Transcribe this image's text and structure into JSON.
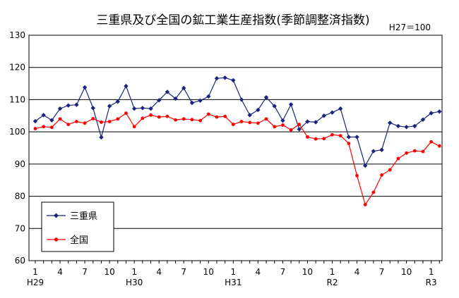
{
  "chart_data": {
    "type": "line",
    "title": "三重県及び全国の鉱工業生産指数(季節調整済指数)",
    "unit_note": "H27＝100",
    "ylim": [
      60,
      130
    ],
    "y_ticks": [
      "60",
      "70",
      "80",
      "90",
      "100",
      "110",
      "120",
      "130"
    ],
    "x_tick_labels": [
      {
        "index": 0,
        "label": "1"
      },
      {
        "index": 3,
        "label": "4"
      },
      {
        "index": 6,
        "label": "7"
      },
      {
        "index": 9,
        "label": "10"
      },
      {
        "index": 12,
        "label": "1"
      },
      {
        "index": 15,
        "label": "4"
      },
      {
        "index": 18,
        "label": "7"
      },
      {
        "index": 21,
        "label": "10"
      },
      {
        "index": 24,
        "label": "1"
      },
      {
        "index": 27,
        "label": "4"
      },
      {
        "index": 30,
        "label": "7"
      },
      {
        "index": 33,
        "label": "10"
      },
      {
        "index": 36,
        "label": "1"
      },
      {
        "index": 39,
        "label": "4"
      },
      {
        "index": 42,
        "label": "7"
      },
      {
        "index": 45,
        "label": "10"
      },
      {
        "index": 48,
        "label": "1"
      }
    ],
    "era_labels": [
      {
        "index": 0,
        "label": "H29"
      },
      {
        "index": 12,
        "label": "H30"
      },
      {
        "index": 24,
        "label": "H31"
      },
      {
        "index": 36,
        "label": "R2"
      },
      {
        "index": 48,
        "label": "R3"
      }
    ],
    "grid": true,
    "legend_position": "bottom-left",
    "series": [
      {
        "name": "三重県",
        "color": "#1a237e",
        "values": [
          103.3,
          105.2,
          103.6,
          107.2,
          108.2,
          108.4,
          113.8,
          107.4,
          98.3,
          108.0,
          109.4,
          114.2,
          107.2,
          107.4,
          107.2,
          109.8,
          112.4,
          110.3,
          113.6,
          109.0,
          109.7,
          111.0,
          116.6,
          116.8,
          116.0,
          110.0,
          105.2,
          106.8,
          110.7,
          108.0,
          103.5,
          108.5,
          100.8,
          103.2,
          103.0,
          105.0,
          106.0,
          107.2,
          98.4,
          98.4,
          89.5,
          94.0,
          94.4,
          102.8,
          101.8,
          101.5,
          101.8,
          103.8,
          105.8,
          106.3
        ]
      },
      {
        "name": "全国",
        "color": "#ff0000",
        "values": [
          101.0,
          101.6,
          101.4,
          104.0,
          102.3,
          103.2,
          102.7,
          104.1,
          103.0,
          103.2,
          104.0,
          105.8,
          101.6,
          104.2,
          105.2,
          104.6,
          104.8,
          103.7,
          104.0,
          103.8,
          103.5,
          105.5,
          104.6,
          104.8,
          102.3,
          103.2,
          102.9,
          102.7,
          104.0,
          101.6,
          102.1,
          100.6,
          102.3,
          98.4,
          97.8,
          97.9,
          99.1,
          98.8,
          96.4,
          86.4,
          77.4,
          81.2,
          86.6,
          88.2,
          91.7,
          93.4,
          94.1,
          93.9,
          96.9,
          95.6
        ]
      }
    ]
  }
}
